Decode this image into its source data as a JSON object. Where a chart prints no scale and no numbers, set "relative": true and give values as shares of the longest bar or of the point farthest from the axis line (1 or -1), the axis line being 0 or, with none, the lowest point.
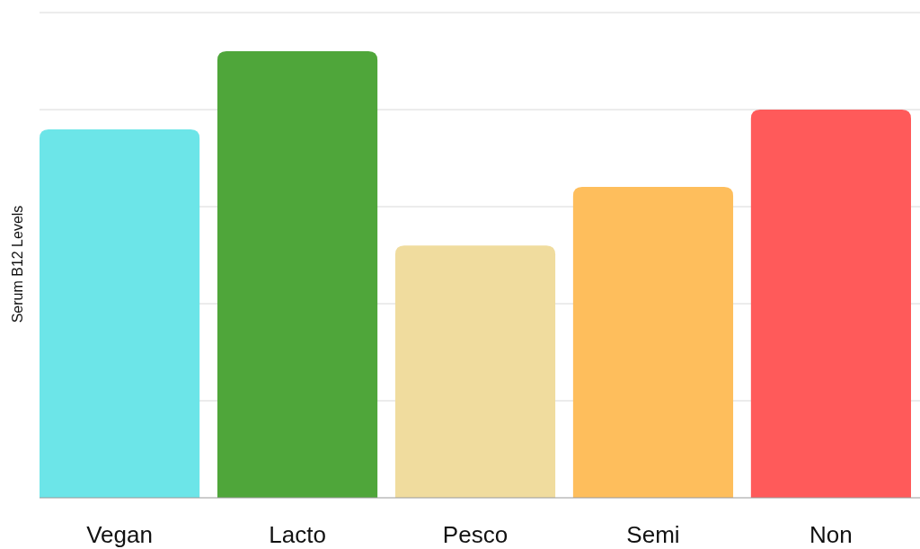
{
  "chart_data": {
    "type": "bar",
    "ylabel": "Serum B12 Levels",
    "relative": true,
    "grid": true,
    "categories": [
      "Vegan",
      "Lacto",
      "Pesco",
      "Semi",
      "Non"
    ],
    "values": [
      0.825,
      1,
      0.565,
      0.696,
      0.869
    ],
    "colors": [
      "#6ce5e8",
      "#4fa63a",
      "#f0dc9e",
      "#febe5c",
      "#ff5a5a"
    ]
  }
}
